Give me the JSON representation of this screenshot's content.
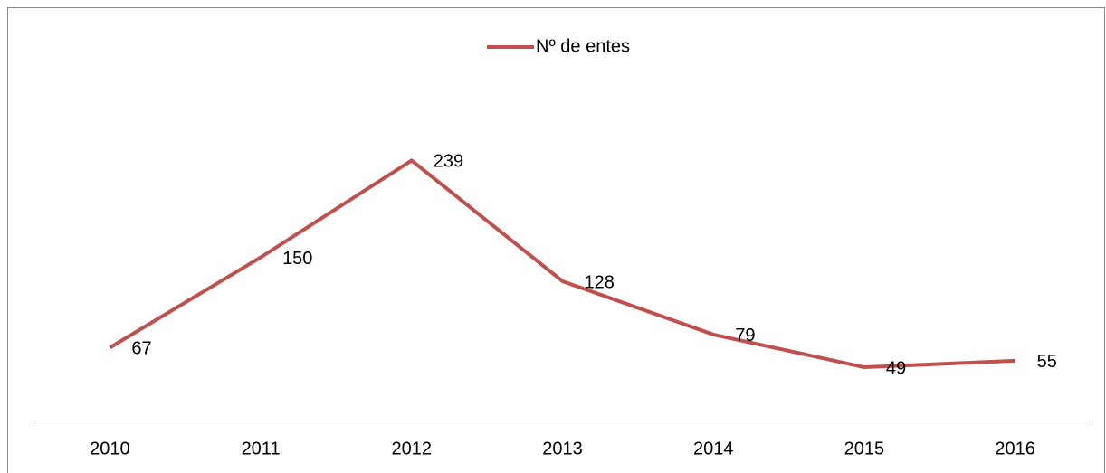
{
  "chart_data": {
    "type": "line",
    "categories": [
      "2010",
      "2011",
      "2012",
      "2013",
      "2014",
      "2015",
      "2016"
    ],
    "series": [
      {
        "name": "Nº de entes",
        "color": "#c0504d",
        "values": [
          67,
          150,
          239,
          128,
          79,
          49,
          55
        ]
      }
    ],
    "ylim": [
      0,
      300
    ],
    "legend": "top"
  }
}
